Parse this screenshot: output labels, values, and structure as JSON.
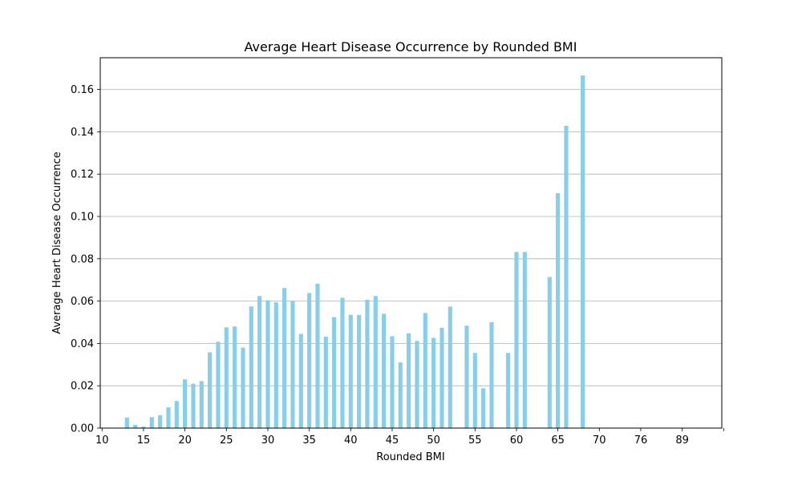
{
  "chart_data": {
    "type": "bar",
    "title": "Average Heart Disease Occurrence by Rounded BMI",
    "xlabel": "Rounded BMI",
    "ylabel": "Average Heart Disease Occurrence",
    "ylim": [
      0,
      0.175
    ],
    "yticks": [
      "0.00",
      "0.02",
      "0.04",
      "0.06",
      "0.08",
      "0.10",
      "0.12",
      "0.14",
      "0.16"
    ],
    "xticks": [
      "10",
      "15",
      "20",
      "25",
      "30",
      "35",
      "40",
      "45",
      "50",
      "55",
      "60",
      "65",
      "70",
      "76",
      "89"
    ],
    "grid": "horizontal",
    "bar_color": "#87ceeb",
    "categories": [
      13,
      14,
      15,
      16,
      17,
      18,
      19,
      20,
      21,
      22,
      23,
      24,
      25,
      26,
      27,
      28,
      29,
      30,
      31,
      32,
      33,
      34,
      35,
      36,
      37,
      38,
      39,
      40,
      41,
      42,
      43,
      44,
      45,
      46,
      47,
      48,
      49,
      50,
      51,
      52,
      53,
      54,
      55,
      56,
      57,
      58,
      59,
      60,
      61,
      62,
      63,
      64,
      65,
      66,
      67,
      68
    ],
    "values": [
      0.005,
      0.0015,
      0.0007,
      0.0052,
      0.0061,
      0.0098,
      0.0128,
      0.023,
      0.021,
      0.0222,
      0.0358,
      0.0408,
      0.0476,
      0.048,
      0.038,
      0.0575,
      0.0624,
      0.0604,
      0.0594,
      0.0662,
      0.0602,
      0.0445,
      0.0638,
      0.0682,
      0.0432,
      0.0524,
      0.0616,
      0.0535,
      0.0535,
      0.0606,
      0.0624,
      0.054,
      0.0434,
      0.031,
      0.0448,
      0.0412,
      0.0544,
      0.0426,
      0.0474,
      0.0574,
      0,
      0.0484,
      0.0355,
      0.0188,
      0.05,
      0,
      0.0355,
      0.0832,
      0.0832,
      0,
      0,
      0.0714,
      0.111,
      0.1428,
      0,
      0.1666
    ]
  }
}
